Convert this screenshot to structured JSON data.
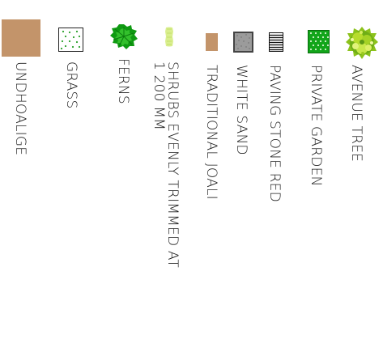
{
  "legend": {
    "items": [
      {
        "id": "avenue-tree",
        "label": "AVENUE TREE",
        "symbol": "tree-canopy-icon",
        "colors": [
          "#5e9a16",
          "#a8d422",
          "#dff06a"
        ]
      },
      {
        "id": "private-garden",
        "label": "PRIVATE GARDEN",
        "symbol": "hatched-green-square-icon",
        "colors": [
          "#12a51a",
          "#d8f4d0"
        ]
      },
      {
        "id": "paving-stone-red",
        "label": "PAVING STONE RED",
        "symbol": "horizontal-lines-square-icon",
        "colors": [
          "#111111",
          "#ffffff"
        ]
      },
      {
        "id": "white-sand",
        "label": "WHITE SAND",
        "symbol": "stippled-gray-square-icon",
        "colors": [
          "#9b9b9b",
          "#444444"
        ]
      },
      {
        "id": "traditional-joali",
        "label": "TRADITIONAL JOALI",
        "symbol": "tan-rectangle-icon",
        "colors": [
          "#c3946a"
        ]
      },
      {
        "id": "shrubs",
        "label_lines": [
          "SHRUBS EVENLY TRIMMED AT",
          "1 200 MM"
        ],
        "symbol": "pale-green-shrub-icon",
        "colors": [
          "#d9ee8e",
          "#c2e06a"
        ]
      },
      {
        "id": "ferns",
        "label": "FERNS",
        "symbol": "fern-leaf-icon",
        "colors": [
          "#0f9a12",
          "#33c02c"
        ]
      },
      {
        "id": "grass",
        "label": "GRASS",
        "symbol": "dotted-green-square-icon",
        "colors": [
          "#2aa02a",
          "#ffffff"
        ]
      },
      {
        "id": "undhoalige",
        "label": "UNDHOALIGE",
        "symbol": "large-tan-square-icon",
        "colors": [
          "#c3946a"
        ]
      }
    ]
  }
}
